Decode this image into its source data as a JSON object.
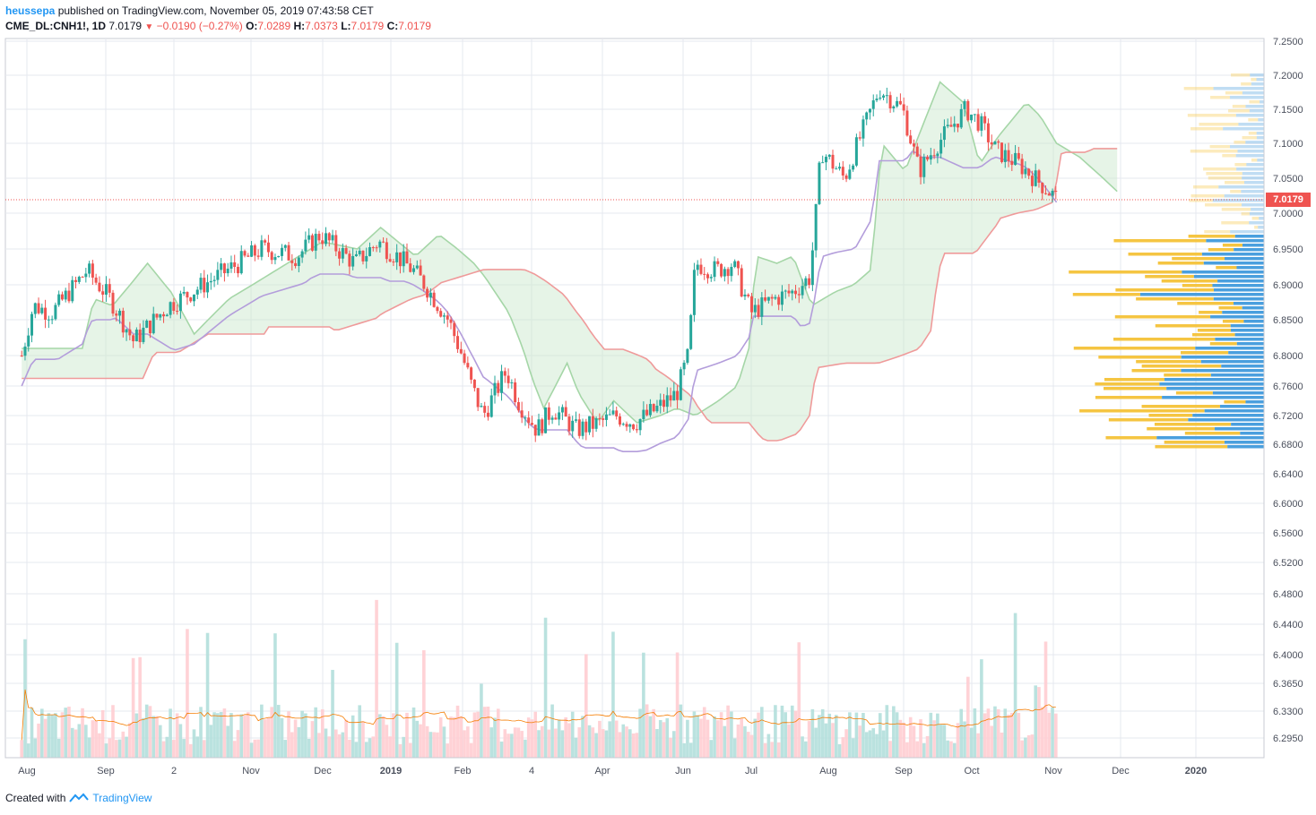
{
  "header": {
    "publisher": "heussepa",
    "published_text": "published on TradingView.com, November 05, 2019 07:43:58 CET",
    "symbol": "CME_DL:CNH1!, 1D",
    "last": "7.0179",
    "change": "−0.0190 (−0.27%)",
    "o_label": "O:",
    "o_value": "7.0289",
    "h_label": "H:",
    "h_value": "7.0373",
    "l_label": "L:",
    "l_value": "7.0179",
    "c_label": "C:",
    "c_value": "7.0179"
  },
  "footer": {
    "created_with": "Created with",
    "brand": "TradingView"
  },
  "colors": {
    "up": "#26a69a",
    "down": "#ef5350",
    "cloud_bull": "#a5d6a7",
    "cloud_bear": "#ef9a9a",
    "base_line": "#b39ddb",
    "vol_up": "#b2dfdb",
    "vol_down": "#ffcdd2",
    "vol_ma": "#f57c00",
    "vp_blue": "#4a9fde",
    "vp_yellow": "#f5c542"
  },
  "chart_data": {
    "type": "candlestick",
    "instrument": "CME_DL:CNH1!",
    "interval": "1D",
    "last_price_label": "7.0179",
    "y_ticks": [
      "7.2500",
      "7.2000",
      "7.1500",
      "7.1000",
      "7.0500",
      "7.0000",
      "6.9500",
      "6.9000",
      "6.8500",
      "6.8000",
      "6.7600",
      "6.7200",
      "6.6800",
      "6.6400",
      "6.6000",
      "6.5600",
      "6.5200",
      "6.4800",
      "6.4400",
      "6.4000",
      "6.3650",
      "6.3300",
      "6.2950"
    ],
    "x_ticks": [
      "Aug",
      "Sep",
      "2",
      "Nov",
      "Dec",
      "2019",
      "Feb",
      "4",
      "Apr",
      "Jun",
      "Jul",
      "Aug",
      "Sep",
      "Oct",
      "Nov",
      "Dec",
      "2020"
    ],
    "price_path": [
      [
        6.8,
        7
      ],
      [
        6.87,
        12
      ],
      [
        6.86,
        20
      ],
      [
        6.92,
        35
      ],
      [
        6.88,
        45
      ],
      [
        6.82,
        55
      ],
      [
        6.87,
        70
      ],
      [
        6.89,
        80
      ],
      [
        6.92,
        95
      ],
      [
        6.95,
        110
      ],
      [
        6.94,
        125
      ],
      [
        6.97,
        135
      ],
      [
        6.93,
        150
      ],
      [
        6.96,
        160
      ],
      [
        6.94,
        168
      ],
      [
        6.92,
        175
      ],
      [
        6.9,
        180
      ],
      [
        6.85,
        190
      ],
      [
        6.8,
        196
      ],
      [
        6.76,
        200
      ],
      [
        6.72,
        205
      ],
      [
        6.75,
        210
      ],
      [
        6.78,
        215
      ],
      [
        6.74,
        220
      ],
      [
        6.7,
        228
      ],
      [
        6.73,
        235
      ],
      [
        6.7,
        245
      ],
      [
        6.71,
        255
      ],
      [
        6.72,
        262
      ],
      [
        6.71,
        270
      ],
      [
        6.73,
        280
      ],
      [
        6.75,
        288
      ],
      [
        6.8,
        293
      ],
      [
        6.93,
        296
      ],
      [
        6.92,
        305
      ],
      [
        6.93,
        312
      ],
      [
        6.86,
        320
      ],
      [
        6.88,
        330
      ],
      [
        6.89,
        338
      ],
      [
        6.91,
        345
      ],
      [
        6.97,
        347
      ],
      [
        7.09,
        350
      ],
      [
        7.05,
        360
      ],
      [
        7.12,
        368
      ],
      [
        7.18,
        375
      ],
      [
        7.15,
        385
      ],
      [
        7.06,
        392
      ],
      [
        7.1,
        400
      ],
      [
        7.15,
        412
      ],
      [
        7.13,
        418
      ],
      [
        7.09,
        425
      ],
      [
        7.07,
        435
      ],
      [
        7.04,
        445
      ],
      [
        7.018,
        452
      ]
    ],
    "indicators": [
      "Ichimoku Cloud",
      "Volume",
      "Volume MA",
      "Visible Range Volume Profile"
    ]
  }
}
